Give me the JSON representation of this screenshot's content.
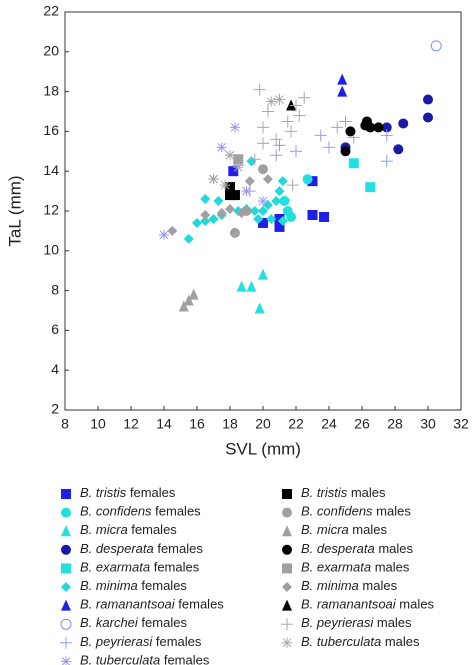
{
  "chart_data": {
    "type": "scatter",
    "x_label": "SVL (mm)",
    "y_label": "TaL (mm)",
    "xlim": [
      8,
      32
    ],
    "xticks": [
      8,
      10,
      12,
      14,
      16,
      18,
      20,
      22,
      24,
      26,
      28,
      30,
      32
    ],
    "ylim": [
      2,
      22
    ],
    "yticks": [
      2,
      4,
      6,
      8,
      10,
      12,
      14,
      16,
      18,
      20,
      22
    ],
    "series": [
      {
        "name": "B. tristis females",
        "color": "#1f1fe6",
        "marker": "square",
        "x": [
          20,
          21,
          21,
          23,
          23.7,
          23,
          18.2
        ],
        "y": [
          11.4,
          11.2,
          11.6,
          11.8,
          11.7,
          13.5,
          14
        ]
      },
      {
        "name": "B. confidens females",
        "color": "#22e0e0",
        "marker": "circle",
        "x": [
          21.7,
          21.5,
          22.7,
          21.3
        ],
        "y": [
          11.7,
          12,
          13.6,
          12.5
        ]
      },
      {
        "name": "B. micra females",
        "color": "#22e0e0",
        "marker": "triangle",
        "x": [
          18.7,
          19.3,
          19.8,
          20
        ],
        "y": [
          8.2,
          8.2,
          7.1,
          8.8
        ]
      },
      {
        "name": "B. desperata females",
        "color": "#1a1aa8",
        "marker": "circle",
        "x": [
          30,
          30,
          28.5,
          27.5,
          28.2,
          25
        ],
        "y": [
          17.6,
          16.7,
          16.4,
          16.2,
          15.1,
          15.2
        ]
      },
      {
        "name": "B. exarmata females",
        "color": "#22e0e0",
        "marker": "square",
        "x": [
          25.5,
          26.5
        ],
        "y": [
          14.4,
          13.2
        ]
      },
      {
        "name": "B. minima females",
        "color": "#22d8d8",
        "marker": "diamond",
        "x": [
          15.5,
          16,
          16.5,
          17,
          17.5,
          18.5,
          19,
          19.5,
          19.7,
          20,
          20.3,
          20.8,
          21,
          21.2,
          20.5,
          21.2,
          17.3,
          19.3,
          16.5
        ],
        "y": [
          10.6,
          11.4,
          11.5,
          11.6,
          11.8,
          12,
          12.1,
          12,
          11.6,
          12,
          12.3,
          12.5,
          13,
          13.5,
          11.6,
          11.5,
          12.5,
          14.5,
          12.6
        ]
      },
      {
        "name": "B. ramanantsoai females",
        "color": "#1f1fe6",
        "marker": "triangle",
        "x": [
          24.8,
          24.8
        ],
        "y": [
          18.6,
          18
        ]
      },
      {
        "name": "B. karchei females",
        "color": "#8090f0",
        "marker": "open-circle",
        "x": [
          30.5
        ],
        "y": [
          20.3
        ]
      },
      {
        "name": "B. peyrierasi females",
        "color": "#9a9ae8",
        "marker": "plus",
        "x": [
          23.5,
          24.5,
          25,
          25.5,
          24,
          27.5,
          27.5,
          22,
          21,
          20.8,
          19.2,
          18.5
        ],
        "y": [
          15.8,
          16.2,
          16.5,
          15.7,
          15.2,
          15.8,
          14.5,
          15,
          15.3,
          14.8,
          13,
          14.3
        ]
      },
      {
        "name": "B. tuberculata females",
        "color": "#9a9ae8",
        "marker": "asterisk",
        "x": [
          14,
          17,
          17.5,
          18.3,
          18,
          19,
          20
        ],
        "y": [
          10.8,
          13.6,
          15.2,
          16.2,
          14.8,
          13,
          12.5
        ]
      },
      {
        "name": "B. tristis males",
        "color": "#000000",
        "marker": "square",
        "x": [
          18,
          18,
          18.3
        ],
        "y": [
          13.2,
          12.8,
          12.8
        ]
      },
      {
        "name": "B. confidens males",
        "color": "#a0a0a0",
        "marker": "circle",
        "x": [
          18.3,
          20,
          19
        ],
        "y": [
          10.9,
          14.1,
          12
        ]
      },
      {
        "name": "B. micra males",
        "color": "#a0a0a0",
        "marker": "triangle",
        "x": [
          15.2,
          15.5,
          15.8
        ],
        "y": [
          7.2,
          7.5,
          7.8
        ]
      },
      {
        "name": "B. desperata males",
        "color": "#000000",
        "marker": "circle",
        "x": [
          25,
          25.3,
          26.2,
          26.5,
          27,
          26.3
        ],
        "y": [
          15,
          16,
          16.3,
          16.2,
          16.2,
          16.5
        ]
      },
      {
        "name": "B. exarmata males",
        "color": "#a0a0a0",
        "marker": "square",
        "x": [
          18.5
        ],
        "y": [
          14.6
        ]
      },
      {
        "name": "B. minima males",
        "color": "#a0a0a0",
        "marker": "diamond",
        "x": [
          14.5,
          16.5,
          17.5,
          18,
          18.7,
          20.3,
          19.2
        ],
        "y": [
          11,
          11.8,
          11.9,
          12.1,
          11.9,
          13.6,
          13.5
        ]
      },
      {
        "name": "B. ramanantsoai males",
        "color": "#000000",
        "marker": "triangle",
        "x": [
          21.7
        ],
        "y": [
          17.3
        ]
      },
      {
        "name": "B. peyrierasi males",
        "color": "#a8a8a8",
        "marker": "plus",
        "x": [
          19.8,
          21,
          22,
          21.5,
          20.3,
          20,
          21.7,
          20.8,
          22.5,
          22.2,
          20,
          19.5,
          21.8
        ],
        "y": [
          18.1,
          17.6,
          17.3,
          16.5,
          17,
          16.2,
          16,
          15.6,
          17.7,
          16.8,
          15.4,
          14.6,
          13.3
        ]
      },
      {
        "name": "B. tuberculata males",
        "color": "#a8a8a8",
        "marker": "asterisk",
        "x": [
          17,
          18,
          18.5,
          20.5,
          21,
          17.7
        ],
        "y": [
          13.6,
          14.8,
          14.2,
          17.5,
          17.6,
          13.3
        ]
      }
    ]
  }
}
